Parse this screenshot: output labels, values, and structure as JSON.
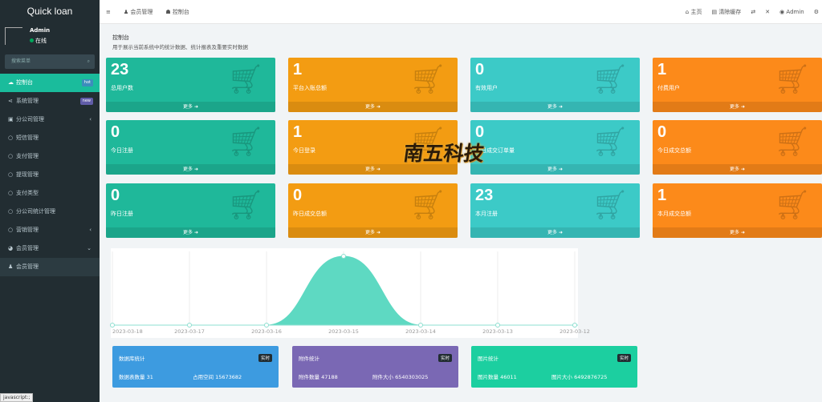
{
  "sidebar": {
    "brand": "Quick loan",
    "user": "Admin",
    "status": "在线",
    "search_placeholder": "搜索菜单",
    "items": [
      {
        "label": "控制台",
        "icon": "dashboard-icon",
        "badge": "hot",
        "badge_color": "#3c8dbc"
      },
      {
        "label": "系统管理",
        "icon": "share-icon",
        "badge": "new",
        "badge_color": "#605ca8"
      },
      {
        "label": "分公司管理",
        "icon": "group-icon",
        "chevron": "‹"
      },
      {
        "label": "短信管理",
        "icon": "circle-icon"
      },
      {
        "label": "支付管理",
        "icon": "circle-icon"
      },
      {
        "label": "提现管理",
        "icon": "circle-icon"
      },
      {
        "label": "支付类型",
        "icon": "circle-icon"
      },
      {
        "label": "分公司统计管理",
        "icon": "circle-icon"
      },
      {
        "label": "营销管理",
        "icon": "circle-icon",
        "chevron": "‹"
      },
      {
        "label": "会员管理",
        "icon": "user-circle-icon",
        "chevron": "⌄"
      },
      {
        "label": "会员管理",
        "icon": "user-icon"
      }
    ]
  },
  "header": {
    "tabs": [
      "会员管理",
      "控制台"
    ],
    "right": [
      "主页",
      "清除缓存",
      "Admin"
    ]
  },
  "content": {
    "title": "控制台",
    "subtitle": "用于展示当前系统中的统计数据、统计报表及重要实时数据"
  },
  "cards": [
    {
      "value": "23",
      "label": "总用户数",
      "color": "#1fb89a"
    },
    {
      "value": "1",
      "label": "平台入账总额",
      "color": "#f39c12"
    },
    {
      "value": "0",
      "label": "有效用户",
      "color": "#3ccac7"
    },
    {
      "value": "1",
      "label": "付费用户",
      "color": "#fc8a1a"
    },
    {
      "value": "0",
      "label": "今日注册",
      "color": "#1fb89a"
    },
    {
      "value": "1",
      "label": "今日登录",
      "color": "#f39c12"
    },
    {
      "value": "0",
      "label": "今日成交订单量",
      "color": "#3ccac7"
    },
    {
      "value": "0",
      "label": "今日成交总额",
      "color": "#fc8a1a"
    },
    {
      "value": "0",
      "label": "昨日注册",
      "color": "#1fb89a"
    },
    {
      "value": "0",
      "label": "昨日成交总额",
      "color": "#f39c12"
    },
    {
      "value": "23",
      "label": "本月注册",
      "color": "#3ccac7"
    },
    {
      "value": "1",
      "label": "本月成交总额",
      "color": "#fc8a1a"
    }
  ],
  "more_label": "更多 ➜",
  "watermark": "南五科技",
  "chart_data": {
    "type": "area",
    "x": [
      "2023-03-18",
      "2023-03-17",
      "2023-03-16",
      "2023-03-15",
      "2023-03-14",
      "2023-03-13",
      "2023-03-12"
    ],
    "values": [
      0,
      0,
      0,
      1,
      0,
      0,
      0
    ],
    "color": "#5ed9c2",
    "grid": true
  },
  "boxes": [
    {
      "title": "数据库统计",
      "tag": "实时",
      "a": "数据表数量 31",
      "b": "占用空间 15673682",
      "color": "#3d9be0"
    },
    {
      "title": "附件统计",
      "tag": "实时",
      "a": "附件数量 47188",
      "b": "附件大小 6540303025",
      "color": "#7a68b4"
    },
    {
      "title": "图片统计",
      "tag": "实时",
      "a": "图片数量 46011",
      "b": "图片大小 6492876725",
      "color": "#1ccfa0"
    }
  ],
  "statusbar": "javascript:;"
}
